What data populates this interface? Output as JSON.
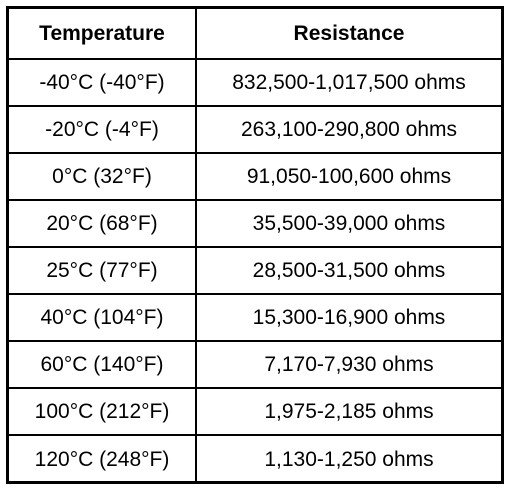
{
  "table": {
    "headers": {
      "temperature": "Temperature",
      "resistance": "Resistance"
    },
    "rows": [
      {
        "temperature": "-40°C (-40°F)",
        "resistance": "832,500-1,017,500 ohms"
      },
      {
        "temperature": "-20°C (-4°F)",
        "resistance": "263,100-290,800 ohms"
      },
      {
        "temperature": "0°C (32°F)",
        "resistance": "91,050-100,600 ohms"
      },
      {
        "temperature": "20°C (68°F)",
        "resistance": "35,500-39,000 ohms"
      },
      {
        "temperature": "25°C (77°F)",
        "resistance": "28,500-31,500 ohms"
      },
      {
        "temperature": "40°C (104°F)",
        "resistance": "15,300-16,900 ohms"
      },
      {
        "temperature": "60°C (140°F)",
        "resistance": "7,170-7,930 ohms"
      },
      {
        "temperature": "100°C (212°F)",
        "resistance": "1,975-2,185 ohms"
      },
      {
        "temperature": "120°C (248°F)",
        "resistance": "1,130-1,250 ohms"
      }
    ]
  }
}
